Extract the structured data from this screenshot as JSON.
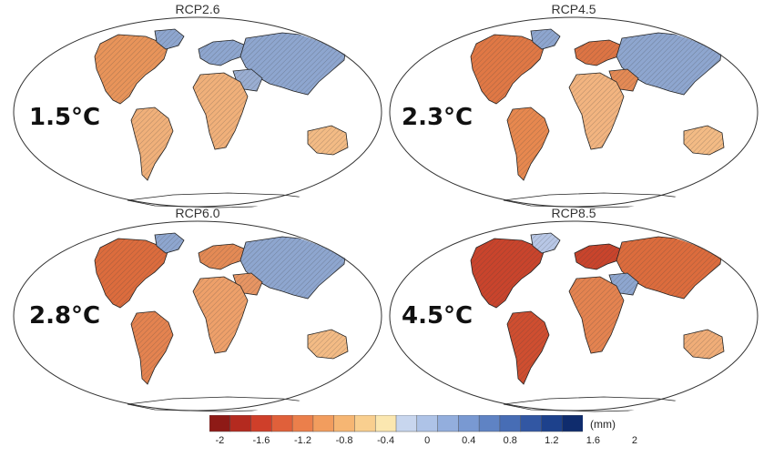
{
  "panels": [
    {
      "title": "RCP2.6",
      "warming": "1.5°C",
      "tone": "mild"
    },
    {
      "title": "RCP4.5",
      "warming": "2.3°C",
      "tone": "mixed"
    },
    {
      "title": "RCP6.0",
      "warming": "2.8°C",
      "tone": "dry-am"
    },
    {
      "title": "RCP8.5",
      "warming": "4.5°C",
      "tone": "strong"
    }
  ],
  "colorbar": {
    "unit": "(mm)",
    "tick_labels": [
      "-2",
      "-1.6",
      "-1.2",
      "-0.8",
      "-0.4",
      "0",
      "0.4",
      "0.8",
      "1.2",
      "1.6",
      "2"
    ],
    "colors": [
      "#8e1a16",
      "#b42a1f",
      "#cf3f2a",
      "#e0603a",
      "#eb7f4b",
      "#f29d5e",
      "#f6b673",
      "#f9cf8f",
      "#fbe7b0",
      "#c8d6ee",
      "#aec3e7",
      "#93aedd",
      "#7999d2",
      "#5f83c4",
      "#476db5",
      "#3257a3",
      "#1d418c",
      "#0f2c6d"
    ]
  },
  "tone_colors": {
    "mild": {
      "na": "#e8945a",
      "sa": "#f0b07a",
      "eu": "#8ea6cf",
      "af": "#f0b07a",
      "as": "#8ea6cf",
      "au": "#f3bb85",
      "gr": "#8ea6cf",
      "me": "#9aaed2"
    },
    "mixed": {
      "na": "#e07845",
      "sa": "#e7884f",
      "eu": "#dd7444",
      "af": "#f2b480",
      "as": "#8ea6cf",
      "au": "#f3bb85",
      "gr": "#8ea6cf",
      "me": "#e48a55"
    },
    "dry-am": {
      "na": "#dc6c3d",
      "sa": "#e48350",
      "eu": "#e48a55",
      "af": "#eea06a",
      "as": "#8ea6cf",
      "au": "#f3bb85",
      "gr": "#8ea6cf",
      "me": "#e79563"
    },
    "strong": {
      "na": "#c9442c",
      "sa": "#cf4e30",
      "eu": "#c9442c",
      "af": "#e48350",
      "as": "#dc6c3d",
      "au": "#f0ad78",
      "gr": "#b8c7e6",
      "me": "#8ea6cf"
    }
  }
}
